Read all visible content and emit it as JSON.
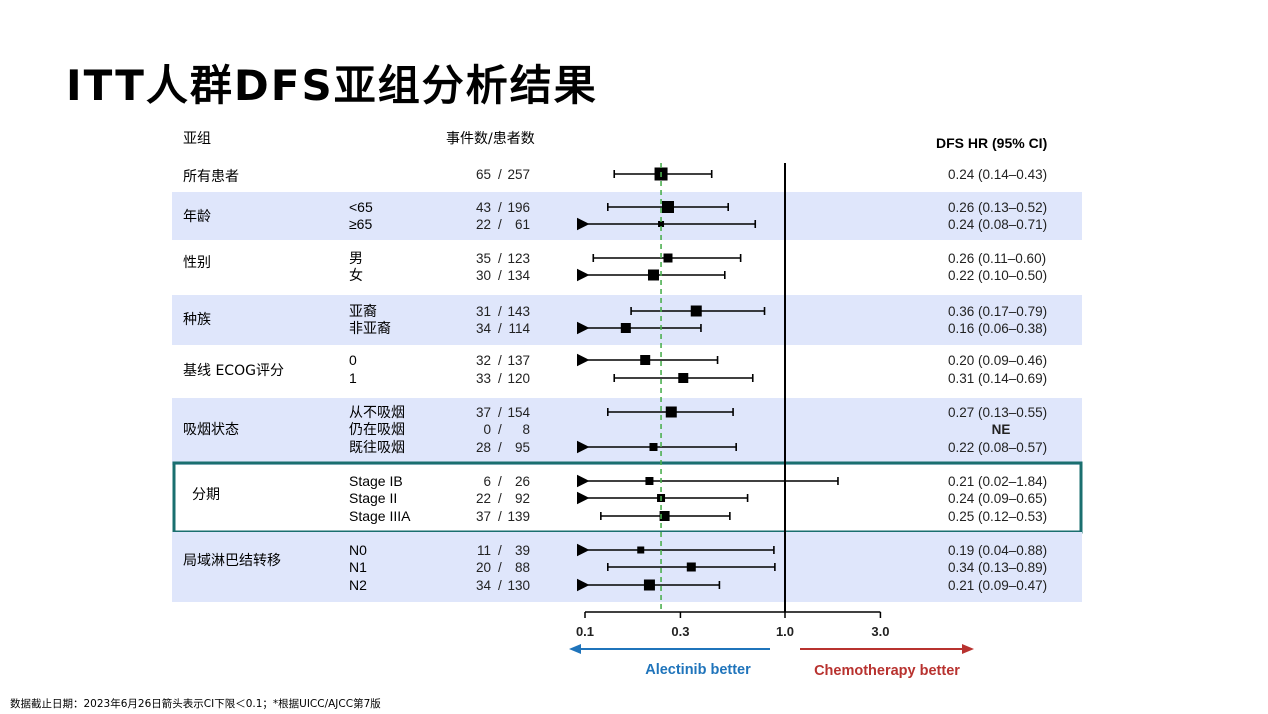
{
  "title": "ITT人群DFS亚组分析结果",
  "footnote": "数据截止日期：2023年6月26日箭头表示CI下限＜0.1；*根据UICC/AJCC第7版",
  "colors": {
    "band": "#dfe6fb",
    "highlight_box": "#1a6f6f",
    "reference_line": "#4caf50",
    "alectinib": "#1f74bb",
    "chemotherapy": "#b8322f"
  },
  "chart_data": {
    "type": "forest",
    "headers": {
      "subgroup": "亚组",
      "events": "事件数/患者数",
      "hr": "DFS HR (95% CI)"
    },
    "x_axis": {
      "scale": "log",
      "ticks": [
        0.1,
        0.3,
        1.0,
        3.0
      ],
      "tick_labels": [
        "0.1",
        "0.3",
        "1.0",
        "3.0"
      ],
      "left_label": "Alectinib better",
      "right_label": "Chemotherapy better"
    },
    "reference_value": 1.0,
    "overall_estimate": 0.24,
    "groups": [
      {
        "name": "所有患者",
        "band": false,
        "rows": [
          {
            "label": "",
            "events": "65",
            "patients": "257",
            "hr": 0.24,
            "lo": 0.14,
            "hi": 0.43,
            "text": "0.24 (0.14–0.43)",
            "arrow_left": false,
            "size": 13
          }
        ]
      },
      {
        "name": "年龄",
        "band": true,
        "rows": [
          {
            "label": "<65",
            "events": "43",
            "patients": "196",
            "hr": 0.26,
            "lo": 0.13,
            "hi": 0.52,
            "text": "0.26 (0.13–0.52)",
            "arrow_left": false,
            "size": 12
          },
          {
            "label": "≥65",
            "events": "22",
            "patients": "61",
            "hr": 0.24,
            "lo": 0.08,
            "hi": 0.71,
            "text": "0.24 (0.08–0.71)",
            "arrow_left": true,
            "size": 6
          }
        ]
      },
      {
        "name": "性别",
        "band": false,
        "rows": [
          {
            "label": "男",
            "events": "35",
            "patients": "123",
            "hr": 0.26,
            "lo": 0.11,
            "hi": 0.6,
            "text": "0.26 (0.11–0.60)",
            "arrow_left": false,
            "size": 9
          },
          {
            "label": "女",
            "events": "30",
            "patients": "134",
            "hr": 0.22,
            "lo": 0.1,
            "hi": 0.5,
            "text": "0.22 (0.10–0.50)",
            "arrow_left": true,
            "size": 11
          }
        ]
      },
      {
        "name": "种族",
        "band": true,
        "rows": [
          {
            "label": "亚裔",
            "events": "31",
            "patients": "143",
            "hr": 0.36,
            "lo": 0.17,
            "hi": 0.79,
            "text": "0.36 (0.17–0.79)",
            "arrow_left": false,
            "size": 11
          },
          {
            "label": "非亚裔",
            "events": "34",
            "patients": "114",
            "hr": 0.16,
            "lo": 0.06,
            "hi": 0.38,
            "text": "0.16 (0.06–0.38)",
            "arrow_left": true,
            "size": 10
          }
        ]
      },
      {
        "name": "基线 ECOG评分",
        "band": false,
        "rows": [
          {
            "label": "0",
            "events": "32",
            "patients": "137",
            "hr": 0.2,
            "lo": 0.09,
            "hi": 0.46,
            "text": "0.20 (0.09–0.46)",
            "arrow_left": true,
            "size": 10
          },
          {
            "label": "1",
            "events": "33",
            "patients": "120",
            "hr": 0.31,
            "lo": 0.14,
            "hi": 0.69,
            "text": "0.31 (0.14–0.69)",
            "arrow_left": false,
            "size": 10
          }
        ]
      },
      {
        "name": "吸烟状态",
        "band": true,
        "rows": [
          {
            "label": "从不吸烟",
            "events": "37",
            "patients": "154",
            "hr": 0.27,
            "lo": 0.13,
            "hi": 0.55,
            "text": "0.27 (0.13–0.55)",
            "arrow_left": false,
            "size": 11
          },
          {
            "label": "仍在吸烟",
            "events": "0",
            "patients": "8",
            "hr": null,
            "lo": null,
            "hi": null,
            "text": "NE",
            "arrow_left": false,
            "size": 0
          },
          {
            "label": "既往吸烟",
            "events": "28",
            "patients": "95",
            "hr": 0.22,
            "lo": 0.08,
            "hi": 0.57,
            "text": "0.22 (0.08–0.57)",
            "arrow_left": true,
            "size": 8
          }
        ]
      },
      {
        "name": "分期",
        "band": false,
        "highlight": true,
        "rows": [
          {
            "label": "Stage IB",
            "events": "6",
            "patients": "26",
            "hr": 0.21,
            "lo": 0.02,
            "hi": 1.84,
            "text": "0.21 (0.02–1.84)",
            "arrow_left": true,
            "size": 8
          },
          {
            "label": "Stage II",
            "events": "22",
            "patients": "92",
            "hr": 0.24,
            "lo": 0.09,
            "hi": 0.65,
            "text": "0.24 (0.09–0.65)",
            "arrow_left": true,
            "size": 8
          },
          {
            "label": "Stage IIIA",
            "events": "37",
            "patients": "139",
            "hr": 0.25,
            "lo": 0.12,
            "hi": 0.53,
            "text": "0.25 (0.12–0.53)",
            "arrow_left": false,
            "size": 10
          }
        ]
      },
      {
        "name": "局域淋巴结转移",
        "band": true,
        "rows": [
          {
            "label": "N0",
            "events": "11",
            "patients": "39",
            "hr": 0.19,
            "lo": 0.04,
            "hi": 0.88,
            "text": "0.19 (0.04–0.88)",
            "arrow_left": true,
            "size": 7
          },
          {
            "label": "N1",
            "events": "20",
            "patients": "88",
            "hr": 0.34,
            "lo": 0.13,
            "hi": 0.89,
            "text": "0.34 (0.13–0.89)",
            "arrow_left": false,
            "size": 9
          },
          {
            "label": "N2",
            "events": "34",
            "patients": "130",
            "hr": 0.21,
            "lo": 0.09,
            "hi": 0.47,
            "text": "0.21 (0.09–0.47)",
            "arrow_left": true,
            "size": 11
          }
        ]
      }
    ]
  }
}
